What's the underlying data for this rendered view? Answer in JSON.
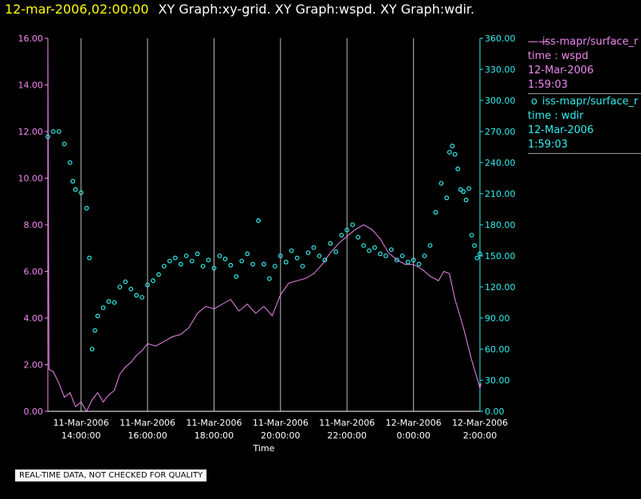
{
  "title": {
    "date": "12-mar-2006,02:00:00",
    "graphs": "XY Graph:xy-grid.  XY Graph:wspd.  XY Graph:wdir."
  },
  "legend": [
    {
      "symbol": "line",
      "source": "iss-mapr/surface_r",
      "var": "time : wspd",
      "date": "12-Mar-2006",
      "time": "1:59:03"
    },
    {
      "symbol": "circle",
      "source": "iss-mapr/surface_r",
      "var": "time : wdir",
      "date": "12-Mar-2006",
      "time": "1:59:03"
    }
  ],
  "disclaimer": "REAL-TIME DATA, NOT CHECKED FOR QUALITY",
  "colors": {
    "wspd": "#ee88ee",
    "wdir": "#33eeee",
    "axis": "#ffffff",
    "grid": "#bbbbbb",
    "title_date": "#ffff00",
    "background": "#000000"
  },
  "chart_data": {
    "type": "line",
    "xlabel": "Time",
    "grid": true,
    "x_range": [
      "2006-03-11T13:00",
      "2006-03-12T02:00"
    ],
    "x_ticks": [
      {
        "value": "2006-03-11T14:00",
        "line1": "11-Mar-2006",
        "line2": "14:00:00"
      },
      {
        "value": "2006-03-11T16:00",
        "line1": "11-Mar-2006",
        "line2": "16:00:00"
      },
      {
        "value": "2006-03-11T18:00",
        "line1": "11-Mar-2006",
        "line2": "18:00:00"
      },
      {
        "value": "2006-03-11T20:00",
        "line1": "11-Mar-2006",
        "line2": "20:00:00"
      },
      {
        "value": "2006-03-11T22:00",
        "line1": "11-Mar-2006",
        "line2": "22:00:00"
      },
      {
        "value": "2006-03-12T00:00",
        "line1": "12-Mar-2006",
        "line2": "0:00:00"
      },
      {
        "value": "2006-03-12T02:00",
        "line1": "12-Mar-2006",
        "line2": "2:00:00"
      }
    ],
    "y_left": {
      "range": [
        0,
        16
      ],
      "ticks": [
        "0.00",
        "2.00",
        "4.00",
        "6.00",
        "8.00",
        "10.00",
        "12.00",
        "14.00",
        "16.00"
      ]
    },
    "y_right": {
      "range": [
        0,
        360
      ],
      "ticks": [
        "0.00",
        "30.00",
        "60.00",
        "90.00",
        "120.00",
        "150.00",
        "180.00",
        "210.00",
        "240.00",
        "270.00",
        "300.00",
        "330.00",
        "360.00"
      ]
    },
    "series": [
      {
        "name": "iss-mapr/surface_r time : wspd",
        "axis": "left",
        "style": "line",
        "points": [
          [
            "2006-03-11T13:00",
            16.0
          ],
          [
            "2006-03-11T13:02",
            1.8
          ],
          [
            "2006-03-11T13:10",
            1.7
          ],
          [
            "2006-03-11T13:20",
            1.2
          ],
          [
            "2006-03-11T13:30",
            0.6
          ],
          [
            "2006-03-11T13:40",
            0.8
          ],
          [
            "2006-03-11T13:50",
            0.2
          ],
          [
            "2006-03-11T14:00",
            0.4
          ],
          [
            "2006-03-11T14:10",
            0.0
          ],
          [
            "2006-03-11T14:20",
            0.5
          ],
          [
            "2006-03-11T14:30",
            0.8
          ],
          [
            "2006-03-11T14:40",
            0.4
          ],
          [
            "2006-03-11T14:50",
            0.7
          ],
          [
            "2006-03-11T15:00",
            0.9
          ],
          [
            "2006-03-11T15:10",
            1.6
          ],
          [
            "2006-03-11T15:20",
            1.9
          ],
          [
            "2006-03-11T15:30",
            2.1
          ],
          [
            "2006-03-11T15:40",
            2.4
          ],
          [
            "2006-03-11T15:50",
            2.6
          ],
          [
            "2006-03-11T16:00",
            2.9
          ],
          [
            "2006-03-11T16:15",
            2.8
          ],
          [
            "2006-03-11T16:30",
            3.0
          ],
          [
            "2006-03-11T16:45",
            3.2
          ],
          [
            "2006-03-11T17:00",
            3.3
          ],
          [
            "2006-03-11T17:15",
            3.6
          ],
          [
            "2006-03-11T17:30",
            4.2
          ],
          [
            "2006-03-11T17:45",
            4.5
          ],
          [
            "2006-03-11T18:00",
            4.4
          ],
          [
            "2006-03-11T18:15",
            4.6
          ],
          [
            "2006-03-11T18:30",
            4.8
          ],
          [
            "2006-03-11T18:45",
            4.3
          ],
          [
            "2006-03-11T19:00",
            4.6
          ],
          [
            "2006-03-11T19:15",
            4.2
          ],
          [
            "2006-03-11T19:30",
            4.5
          ],
          [
            "2006-03-11T19:45",
            4.1
          ],
          [
            "2006-03-11T20:00",
            5.0
          ],
          [
            "2006-03-11T20:15",
            5.5
          ],
          [
            "2006-03-11T20:30",
            5.6
          ],
          [
            "2006-03-11T20:45",
            5.7
          ],
          [
            "2006-03-11T21:00",
            5.9
          ],
          [
            "2006-03-11T21:15",
            6.3
          ],
          [
            "2006-03-11T21:30",
            6.8
          ],
          [
            "2006-03-11T21:45",
            7.2
          ],
          [
            "2006-03-11T22:00",
            7.5
          ],
          [
            "2006-03-11T22:15",
            7.8
          ],
          [
            "2006-03-11T22:30",
            8.0
          ],
          [
            "2006-03-11T22:45",
            7.8
          ],
          [
            "2006-03-11T23:00",
            7.4
          ],
          [
            "2006-03-11T23:15",
            6.8
          ],
          [
            "2006-03-11T23:30",
            6.5
          ],
          [
            "2006-03-11T23:45",
            6.3
          ],
          [
            "2006-03-12T00:00",
            6.3
          ],
          [
            "2006-03-12T00:15",
            6.1
          ],
          [
            "2006-03-12T00:30",
            5.8
          ],
          [
            "2006-03-12T00:45",
            5.6
          ],
          [
            "2006-03-12T00:55",
            6.0
          ],
          [
            "2006-03-12T01:05",
            5.9
          ],
          [
            "2006-03-12T01:15",
            4.8
          ],
          [
            "2006-03-12T01:30",
            3.6
          ],
          [
            "2006-03-12T01:45",
            2.2
          ],
          [
            "2006-03-12T02:00",
            1.0
          ],
          [
            "2006-03-12T02:02",
            1.2
          ]
        ]
      },
      {
        "name": "iss-mapr/surface_r time : wdir",
        "axis": "right",
        "style": "circles",
        "points": [
          [
            "2006-03-11T13:00",
            265
          ],
          [
            "2006-03-11T13:10",
            270
          ],
          [
            "2006-03-11T13:20",
            270
          ],
          [
            "2006-03-11T13:30",
            258
          ],
          [
            "2006-03-11T13:40",
            240
          ],
          [
            "2006-03-11T13:45",
            222
          ],
          [
            "2006-03-11T13:50",
            214
          ],
          [
            "2006-03-11T14:00",
            211
          ],
          [
            "2006-03-11T14:10",
            196
          ],
          [
            "2006-03-11T14:15",
            148
          ],
          [
            "2006-03-11T14:20",
            60
          ],
          [
            "2006-03-11T14:25",
            78
          ],
          [
            "2006-03-11T14:30",
            92
          ],
          [
            "2006-03-11T14:40",
            100
          ],
          [
            "2006-03-11T14:50",
            106
          ],
          [
            "2006-03-11T15:00",
            105
          ],
          [
            "2006-03-11T15:10",
            120
          ],
          [
            "2006-03-11T15:20",
            125
          ],
          [
            "2006-03-11T15:30",
            118
          ],
          [
            "2006-03-11T15:40",
            112
          ],
          [
            "2006-03-11T15:50",
            110
          ],
          [
            "2006-03-11T16:00",
            122
          ],
          [
            "2006-03-11T16:10",
            126
          ],
          [
            "2006-03-11T16:20",
            132
          ],
          [
            "2006-03-11T16:30",
            140
          ],
          [
            "2006-03-11T16:40",
            145
          ],
          [
            "2006-03-11T16:50",
            148
          ],
          [
            "2006-03-11T17:00",
            142
          ],
          [
            "2006-03-11T17:10",
            150
          ],
          [
            "2006-03-11T17:20",
            145
          ],
          [
            "2006-03-11T17:30",
            152
          ],
          [
            "2006-03-11T17:40",
            140
          ],
          [
            "2006-03-11T17:50",
            146
          ],
          [
            "2006-03-11T18:00",
            138
          ],
          [
            "2006-03-11T18:10",
            150
          ],
          [
            "2006-03-11T18:20",
            147
          ],
          [
            "2006-03-11T18:30",
            141
          ],
          [
            "2006-03-11T18:40",
            130
          ],
          [
            "2006-03-11T18:50",
            145
          ],
          [
            "2006-03-11T19:00",
            152
          ],
          [
            "2006-03-11T19:10",
            142
          ],
          [
            "2006-03-11T19:20",
            184
          ],
          [
            "2006-03-11T19:30",
            142
          ],
          [
            "2006-03-11T19:40",
            128
          ],
          [
            "2006-03-11T19:50",
            140
          ],
          [
            "2006-03-11T20:00",
            150
          ],
          [
            "2006-03-11T20:10",
            144
          ],
          [
            "2006-03-11T20:20",
            155
          ],
          [
            "2006-03-11T20:30",
            148
          ],
          [
            "2006-03-11T20:40",
            140
          ],
          [
            "2006-03-11T20:50",
            153
          ],
          [
            "2006-03-11T21:00",
            158
          ],
          [
            "2006-03-11T21:10",
            150
          ],
          [
            "2006-03-11T21:20",
            146
          ],
          [
            "2006-03-11T21:30",
            162
          ],
          [
            "2006-03-11T21:40",
            154
          ],
          [
            "2006-03-11T21:50",
            170
          ],
          [
            "2006-03-11T22:00",
            175
          ],
          [
            "2006-03-11T22:10",
            180
          ],
          [
            "2006-03-11T22:20",
            168
          ],
          [
            "2006-03-11T22:30",
            160
          ],
          [
            "2006-03-11T22:40",
            155
          ],
          [
            "2006-03-11T22:50",
            158
          ],
          [
            "2006-03-11T23:00",
            152
          ],
          [
            "2006-03-11T23:10",
            150
          ],
          [
            "2006-03-11T23:20",
            156
          ],
          [
            "2006-03-11T23:30",
            146
          ],
          [
            "2006-03-11T23:40",
            150
          ],
          [
            "2006-03-11T23:50",
            144
          ],
          [
            "2006-03-12T00:00",
            146
          ],
          [
            "2006-03-12T00:10",
            142
          ],
          [
            "2006-03-12T00:20",
            150
          ],
          [
            "2006-03-12T00:30",
            160
          ],
          [
            "2006-03-12T00:40",
            192
          ],
          [
            "2006-03-12T00:50",
            220
          ],
          [
            "2006-03-12T01:00",
            206
          ],
          [
            "2006-03-12T01:05",
            250
          ],
          [
            "2006-03-12T01:10",
            256
          ],
          [
            "2006-03-12T01:15",
            248
          ],
          [
            "2006-03-12T01:20",
            234
          ],
          [
            "2006-03-12T01:25",
            214
          ],
          [
            "2006-03-12T01:30",
            212
          ],
          [
            "2006-03-12T01:35",
            204
          ],
          [
            "2006-03-12T01:40",
            215
          ],
          [
            "2006-03-12T01:45",
            170
          ],
          [
            "2006-03-12T01:50",
            160
          ],
          [
            "2006-03-12T01:55",
            148
          ],
          [
            "2006-03-12T02:00",
            152
          ]
        ]
      }
    ]
  }
}
